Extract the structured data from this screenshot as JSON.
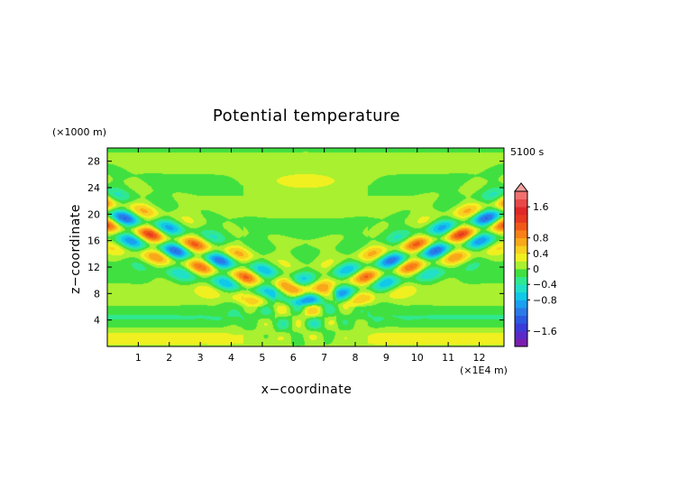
{
  "chart_data": {
    "type": "heatmap",
    "title": "Potential temperature",
    "xlabel": "x−coordinate",
    "ylabel": "z−coordinate",
    "x_unit": "(×1E4 m)",
    "y_unit": "(×1000 m)",
    "time_label": "5100 s",
    "xlim": [
      0,
      12.8
    ],
    "ylim": [
      0,
      30
    ],
    "x_ticks": [
      1,
      2,
      3,
      4,
      5,
      6,
      7,
      8,
      9,
      10,
      11,
      12
    ],
    "y_ticks": [
      4,
      8,
      12,
      16,
      20,
      24,
      28
    ],
    "colorbar": {
      "range": [
        -2,
        2
      ],
      "levels": [
        -2.0,
        -1.8,
        -1.6,
        -1.4,
        -1.2,
        -1.0,
        -0.8,
        -0.6,
        -0.4,
        -0.2,
        0,
        0.2,
        0.4,
        0.6,
        0.8,
        1.0,
        1.2,
        1.4,
        1.6,
        1.8,
        2.0
      ],
      "colors": [
        "#7a1fb0",
        "#5a2ac8",
        "#3a3cd8",
        "#2a5ae0",
        "#2a7ae8",
        "#1aa0f0",
        "#10c8e8",
        "#20e0c8",
        "#30e890",
        "#40e040",
        "#a8f030",
        "#f0f020",
        "#f8d020",
        "#f8a818",
        "#f88018",
        "#f05818",
        "#e83820",
        "#e02828",
        "#e84848",
        "#f07070"
      ],
      "tick_labels": [
        {
          "value": -1.6,
          "label": "−1.6"
        },
        {
          "value": -0.8,
          "label": "−0.8"
        },
        {
          "value": -0.4,
          "label": "−0.4"
        },
        {
          "value": 0,
          "label": "0"
        },
        {
          "value": 0.4,
          "label": "0.4"
        },
        {
          "value": 0.8,
          "label": "0.8"
        },
        {
          "value": 1.6,
          "label": "1.6"
        }
      ]
    }
  }
}
